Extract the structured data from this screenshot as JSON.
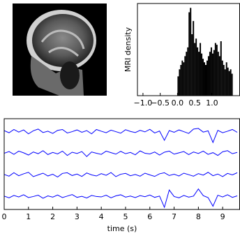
{
  "chart_data": [
    {
      "type": "image"
    },
    {
      "type": "histogram",
      "ylabel": "MRI density",
      "color": "#000000",
      "bins": [
        0,
        0.04,
        0.08,
        0.12,
        0.16,
        0.2,
        0.24,
        0.28,
        0.32,
        0.36,
        0.4,
        0.44,
        0.48,
        0.52,
        0.56,
        0.6,
        0.64,
        0.68,
        0.72,
        0.76,
        0.8,
        0.84,
        0.88,
        0.92,
        0.96,
        1.0,
        1.04,
        1.08,
        1.12,
        1.16,
        1.2,
        1.24,
        1.28,
        1.32,
        1.36,
        1.4,
        1.44,
        1.48,
        1.52,
        1.56,
        1.6
      ],
      "values": [
        0.22,
        0.3,
        0.35,
        0.4,
        0.38,
        0.45,
        0.5,
        0.55,
        0.95,
        1.0,
        0.7,
        0.85,
        0.6,
        0.65,
        0.55,
        0.5,
        0.6,
        0.48,
        0.42,
        0.38,
        0.35,
        0.4,
        0.45,
        0.5,
        0.55,
        0.48,
        0.52,
        0.6,
        0.58,
        0.5,
        0.45,
        0.62,
        0.4,
        0.35,
        0.3,
        0.38,
        0.32,
        0.28,
        0.3,
        0.25
      ],
      "xlim": [
        -1.16,
        1.8
      ],
      "ylim": [
        0,
        1.05
      ],
      "xticks": [
        {
          "value": -1.0,
          "label": "−1.0"
        },
        {
          "value": -0.5,
          "label": "−0.5"
        },
        {
          "value": 0.0,
          "label": "0.0"
        },
        {
          "value": 0.5,
          "label": "0.5"
        },
        {
          "value": 1.0,
          "label": "1.0"
        }
      ]
    },
    {
      "type": "line",
      "xlabel": "time (s)",
      "x": [
        0,
        0.2,
        0.4,
        0.6,
        0.8,
        1.0,
        1.2,
        1.4,
        1.6,
        1.8,
        2.0,
        2.2,
        2.4,
        2.6,
        2.8,
        3.0,
        3.2,
        3.4,
        3.6,
        3.8,
        4.0,
        4.2,
        4.4,
        4.6,
        4.8,
        5.0,
        5.2,
        5.4,
        5.6,
        5.8,
        6.0,
        6.2,
        6.4,
        6.6,
        6.8,
        7.0,
        7.2,
        7.4,
        7.6,
        7.8,
        8.0,
        8.2,
        8.4,
        8.6,
        8.8,
        9.0,
        9.2,
        9.4,
        9.6
      ],
      "series": [
        {
          "color": "#0000ff",
          "values": [
            3.05,
            2.95,
            3.1,
            2.98,
            3.08,
            2.9,
            3.04,
            3.12,
            2.96,
            3.02,
            2.92,
            3.06,
            3.1,
            2.94,
            3.0,
            3.08,
            2.97,
            3.05,
            2.9,
            3.1,
            3.02,
            2.95,
            3.07,
            3.0,
            2.93,
            3.09,
            3.01,
            2.96,
            3.06,
            2.99,
            3.11,
            2.94,
            3.03,
            2.6,
            3.05,
            2.97,
            3.08,
            3.0,
            2.92,
            3.12,
            3.15,
            2.98,
            3.04,
            2.5,
            3.06,
            2.95,
            3.02,
            3.1,
            2.97
          ]
        },
        {
          "color": "#0000ff",
          "values": [
            2.0,
            2.08,
            1.95,
            2.1,
            2.02,
            1.92,
            2.06,
            1.98,
            2.12,
            1.94,
            2.04,
            1.97,
            2.1,
            1.9,
            2.05,
            1.99,
            2.08,
            1.85,
            2.06,
            2.0,
            1.95,
            2.1,
            2.03,
            1.96,
            2.09,
            1.98,
            2.04,
            1.93,
            2.11,
            2.0,
            1.97,
            2.06,
            1.92,
            2.05,
            2.1,
            1.96,
            2.02,
            2.08,
            1.94,
            2.06,
            1.99,
            2.1,
            1.95,
            2.03,
            1.9,
            2.07,
            2.12,
            1.98,
            2.04
          ]
        },
        {
          "color": "#0000ff",
          "values": [
            1.02,
            0.94,
            1.1,
            0.96,
            1.05,
            1.12,
            0.92,
            1.0,
            1.08,
            0.95,
            1.03,
            0.9,
            1.07,
            1.1,
            0.97,
            1.04,
            0.93,
            1.09,
            1.0,
            0.95,
            1.06,
            0.98,
            1.11,
            0.92,
            1.03,
            1.07,
            0.96,
            1.02,
            0.94,
            1.08,
            1.0,
            0.93,
            1.05,
            1.1,
            0.97,
            1.03,
            0.95,
            1.08,
            1.01,
            0.94,
            1.06,
            0.99,
            1.12,
            0.96,
            1.04,
            0.92,
            1.07,
            1.0,
            1.1
          ]
        },
        {
          "color": "#0000ff",
          "values": [
            0.02,
            -0.06,
            0.05,
            -0.02,
            0.08,
            -0.05,
            0.0,
            0.06,
            -0.08,
            0.03,
            -0.03,
            0.07,
            -0.05,
            0.02,
            0.09,
            -0.04,
            0.01,
            -0.07,
            0.05,
            0.0,
            -0.02,
            0.06,
            -0.06,
            0.03,
            0.08,
            -0.03,
            0.02,
            -0.05,
            0.04,
            -0.01,
            0.07,
            -0.04,
            0.02,
            -0.5,
            0.3,
            0.0,
            -0.06,
            0.05,
            -0.03,
            0.02,
            0.35,
            0.04,
            -0.05,
            -0.45,
            0.06,
            -0.02,
            0.08,
            -0.04,
            0.03
          ]
        }
      ],
      "xlim": [
        0,
        9.7
      ],
      "ylim": [
        -0.6,
        3.6
      ],
      "xticks": [
        0,
        1,
        2,
        3,
        4,
        5,
        6,
        7,
        8,
        9
      ]
    }
  ]
}
